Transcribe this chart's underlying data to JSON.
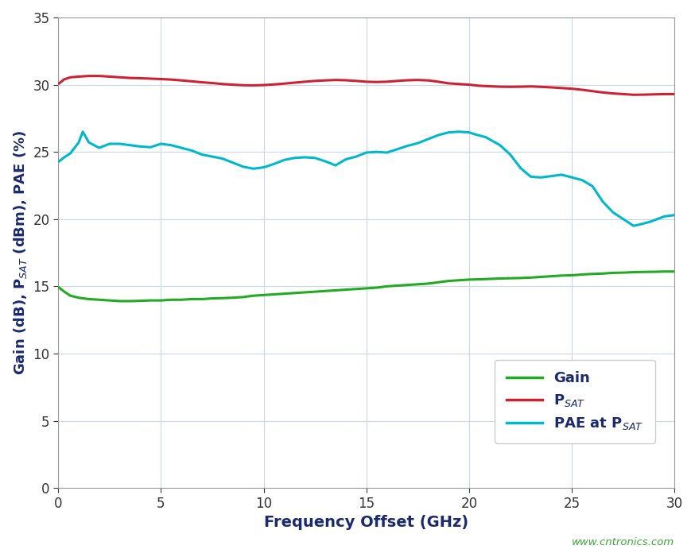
{
  "xlabel": "Frequency Offset (GHz)",
  "ylabel": "Gain (dB), P$_{SAT}$ (dBm), PAE (%)",
  "xlim": [
    0,
    30
  ],
  "ylim": [
    0,
    35
  ],
  "xticks": [
    0,
    5,
    10,
    15,
    20,
    25,
    30
  ],
  "yticks": [
    0,
    5,
    10,
    15,
    20,
    25,
    30,
    35
  ],
  "grid_color": "#c8d8e8",
  "background_color": "#ffffff",
  "watermark": "www.cntronics.com",
  "watermark_color": "#3aaa35",
  "gain_color": "#22aa22",
  "psat_color": "#cc2233",
  "pae_color": "#00b8cc",
  "line_width": 2.2,
  "gain_x": [
    0.05,
    0.3,
    0.6,
    1.0,
    1.5,
    2.0,
    2.5,
    3.0,
    3.5,
    4.0,
    4.5,
    5.0,
    5.5,
    6.0,
    6.5,
    7.0,
    7.5,
    8.0,
    8.5,
    9.0,
    9.5,
    10.0,
    10.5,
    11.0,
    11.5,
    12.0,
    12.5,
    13.0,
    13.5,
    14.0,
    14.5,
    15.0,
    15.5,
    16.0,
    16.5,
    17.0,
    17.5,
    18.0,
    18.5,
    19.0,
    19.5,
    20.0,
    20.5,
    21.0,
    21.5,
    22.0,
    22.5,
    23.0,
    23.5,
    24.0,
    24.5,
    25.0,
    25.5,
    26.0,
    26.5,
    27.0,
    27.5,
    28.0,
    28.5,
    29.0,
    29.5,
    30.0
  ],
  "gain_y": [
    14.9,
    14.6,
    14.3,
    14.15,
    14.05,
    14.0,
    13.95,
    13.9,
    13.9,
    13.92,
    13.95,
    13.95,
    14.0,
    14.0,
    14.05,
    14.05,
    14.1,
    14.12,
    14.15,
    14.2,
    14.3,
    14.35,
    14.4,
    14.45,
    14.5,
    14.55,
    14.6,
    14.65,
    14.7,
    14.75,
    14.8,
    14.85,
    14.9,
    15.0,
    15.05,
    15.1,
    15.15,
    15.2,
    15.3,
    15.4,
    15.45,
    15.5,
    15.52,
    15.55,
    15.58,
    15.6,
    15.62,
    15.65,
    15.7,
    15.75,
    15.8,
    15.82,
    15.88,
    15.92,
    15.95,
    16.0,
    16.02,
    16.05,
    16.07,
    16.08,
    16.1,
    16.1
  ],
  "psat_x": [
    0.05,
    0.3,
    0.6,
    1.0,
    1.5,
    2.0,
    2.5,
    3.0,
    3.5,
    4.0,
    4.5,
    5.0,
    5.5,
    6.0,
    6.5,
    7.0,
    7.5,
    8.0,
    8.5,
    9.0,
    9.5,
    10.0,
    10.5,
    11.0,
    11.5,
    12.0,
    12.5,
    13.0,
    13.5,
    14.0,
    14.5,
    15.0,
    15.5,
    16.0,
    16.5,
    17.0,
    17.5,
    18.0,
    18.5,
    19.0,
    19.5,
    20.0,
    20.5,
    21.0,
    21.5,
    22.0,
    22.5,
    23.0,
    23.5,
    24.0,
    24.5,
    25.0,
    25.5,
    26.0,
    26.5,
    27.0,
    27.5,
    28.0,
    28.5,
    29.0,
    29.5,
    30.0
  ],
  "psat_y": [
    30.1,
    30.4,
    30.55,
    30.6,
    30.65,
    30.65,
    30.6,
    30.55,
    30.5,
    30.48,
    30.45,
    30.42,
    30.38,
    30.32,
    30.25,
    30.18,
    30.12,
    30.05,
    30.0,
    29.96,
    29.95,
    29.97,
    30.02,
    30.08,
    30.15,
    30.22,
    30.28,
    30.32,
    30.35,
    30.33,
    30.28,
    30.22,
    30.2,
    30.22,
    30.28,
    30.33,
    30.35,
    30.32,
    30.22,
    30.1,
    30.05,
    30.0,
    29.92,
    29.88,
    29.85,
    29.84,
    29.85,
    29.87,
    29.84,
    29.8,
    29.75,
    29.7,
    29.62,
    29.52,
    29.42,
    29.35,
    29.3,
    29.25,
    29.26,
    29.28,
    29.3,
    29.3
  ],
  "pae_x": [
    0.05,
    0.3,
    0.6,
    1.0,
    1.2,
    1.5,
    2.0,
    2.5,
    3.0,
    3.5,
    4.0,
    4.5,
    5.0,
    5.5,
    6.0,
    6.5,
    7.0,
    7.5,
    8.0,
    8.5,
    9.0,
    9.5,
    10.0,
    10.5,
    11.0,
    11.5,
    12.0,
    12.5,
    13.0,
    13.5,
    14.0,
    14.5,
    15.0,
    15.5,
    16.0,
    16.5,
    17.0,
    17.5,
    18.0,
    18.5,
    19.0,
    19.5,
    20.0,
    20.3,
    20.8,
    21.5,
    22.0,
    22.5,
    23.0,
    23.5,
    24.0,
    24.5,
    25.0,
    25.5,
    26.0,
    26.5,
    27.0,
    27.5,
    28.0,
    28.3,
    28.8,
    29.5,
    30.0
  ],
  "pae_y": [
    24.3,
    24.6,
    24.9,
    25.7,
    26.5,
    25.7,
    25.3,
    25.6,
    25.6,
    25.5,
    25.4,
    25.35,
    25.6,
    25.5,
    25.3,
    25.1,
    24.8,
    24.65,
    24.5,
    24.2,
    23.9,
    23.75,
    23.85,
    24.1,
    24.4,
    24.55,
    24.6,
    24.55,
    24.3,
    24.0,
    24.45,
    24.65,
    24.95,
    25.0,
    24.95,
    25.2,
    25.45,
    25.65,
    25.95,
    26.25,
    26.45,
    26.5,
    26.45,
    26.3,
    26.1,
    25.5,
    24.8,
    23.8,
    23.15,
    23.1,
    23.2,
    23.3,
    23.1,
    22.9,
    22.45,
    21.3,
    20.5,
    20.0,
    19.5,
    19.6,
    19.8,
    20.2,
    20.3
  ],
  "legend_colors": [
    "#22aa22",
    "#cc2233",
    "#00b8cc"
  ],
  "legend_text_color": "#1a2a6c",
  "axis_label_color": "#1a2a6c",
  "tick_label_color": "#333333"
}
